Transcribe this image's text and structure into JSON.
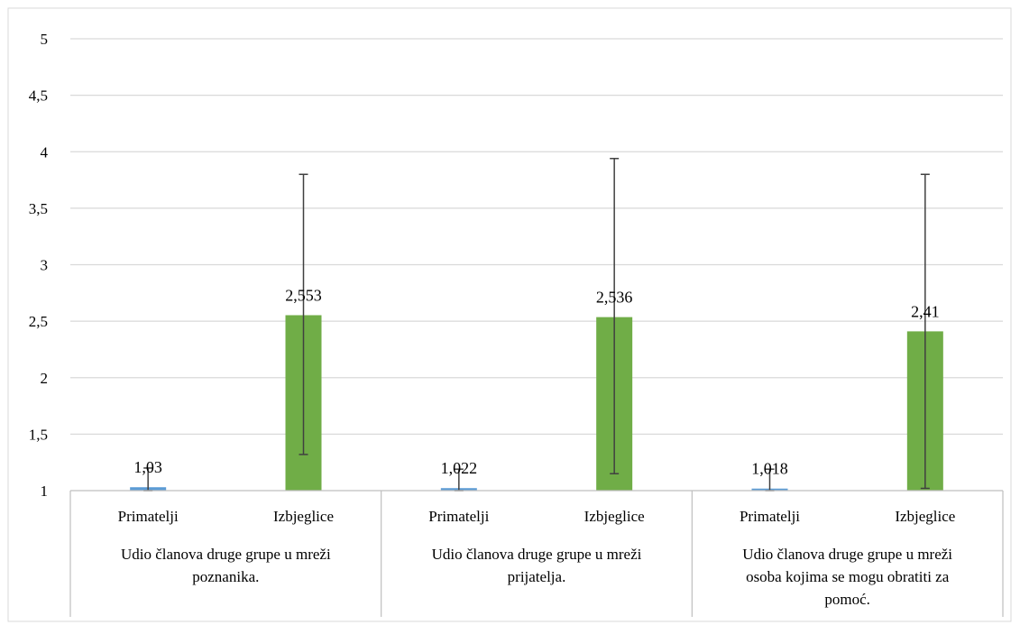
{
  "chart_data": {
    "type": "bar",
    "grid": true,
    "ylim": [
      1,
      5
    ],
    "yticks": [
      "1",
      "1,5",
      "2",
      "2,5",
      "3",
      "3,5",
      "4",
      "4,5",
      "5"
    ],
    "ytick_values": [
      1,
      1.5,
      2,
      2.5,
      3,
      3.5,
      4,
      4.5,
      5
    ],
    "groups": [
      {
        "label_lines": [
          "Udio članova druge grupe u mreži",
          "poznanika."
        ],
        "bars": [
          {
            "category": "Primatelji",
            "value": 1.03,
            "label": "1,03",
            "err_low": 1.0,
            "err_high": 1.2
          },
          {
            "category": "Izbjeglice",
            "value": 2.553,
            "label": "2,553",
            "err_low": 1.32,
            "err_high": 3.8
          }
        ]
      },
      {
        "label_lines": [
          "Udio članova druge grupe u mreži",
          "prijatelja."
        ],
        "bars": [
          {
            "category": "Primatelji",
            "value": 1.022,
            "label": "1,022",
            "err_low": 1.0,
            "err_high": 1.19
          },
          {
            "category": "Izbjeglice",
            "value": 2.536,
            "label": "2,536",
            "err_low": 1.15,
            "err_high": 3.94
          }
        ]
      },
      {
        "label_lines": [
          "Udio članova druge grupe u mreži",
          "osoba kojima se mogu obratiti za",
          "pomoć."
        ],
        "bars": [
          {
            "category": "Primatelji",
            "value": 1.018,
            "label": "1,018",
            "err_low": 1.0,
            "err_high": 1.19
          },
          {
            "category": "Izbjeglice",
            "value": 2.41,
            "label": "2,41",
            "err_low": 1.02,
            "err_high": 3.8
          }
        ]
      }
    ],
    "colors": {
      "Primatelji": "#5b9bd5",
      "Izbjeglice": "#70ad47",
      "grid": "#d9d9d9",
      "axis": "#bfbfbf",
      "error": "#404040"
    }
  }
}
